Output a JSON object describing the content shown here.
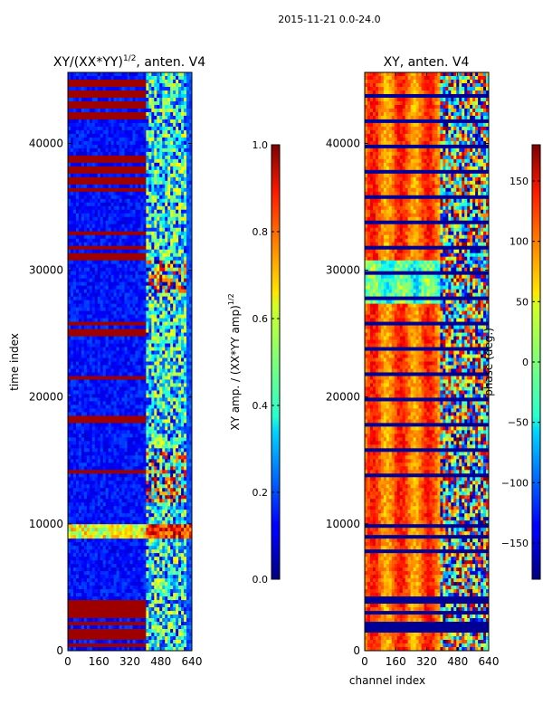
{
  "suptitle": "2015-11-21 0.0-24.0",
  "chart_data": [
    {
      "type": "heatmap",
      "title": "XY/(XX*YY)^{1/2}, anten. V4",
      "title_main": "XY/(XX*YY)",
      "title_exp": "1/2",
      "title_rest": ", anten. V4",
      "xlabel": "",
      "ylabel": "time index",
      "xlim": [
        0,
        640
      ],
      "ylim": [
        0,
        45600
      ],
      "xticks": [
        0,
        160,
        320,
        480,
        640
      ],
      "yticks": [
        0,
        10000,
        20000,
        30000,
        40000
      ],
      "colormap": "jet",
      "colorbar": {
        "label": "XY amp. / (XX*YY amp)^{1/2}",
        "label_main": "XY amp. / (XX*YY amp)",
        "label_exp": "1/2",
        "range": [
          0.0,
          1.0
        ],
        "ticks": [
          "0.0",
          "0.2",
          "0.4",
          "0.6",
          "0.8",
          "1.0"
        ],
        "tick_values": [
          0.0,
          0.2,
          0.4,
          0.6,
          0.8,
          1.0
        ]
      }
    },
    {
      "type": "heatmap",
      "title": "XY, anten. V4",
      "xlabel": "channel index",
      "ylabel": "",
      "xlim": [
        0,
        640
      ],
      "ylim": [
        0,
        45600
      ],
      "xticks": [
        0,
        160,
        320,
        480,
        640
      ],
      "yticks": [
        0,
        10000,
        20000,
        30000,
        40000
      ],
      "colormap": "jet",
      "colorbar": {
        "label": "phase (deg.)",
        "range": [
          -180,
          180
        ],
        "ticks": [
          "150",
          "100",
          "50",
          "0",
          "−50",
          "−100",
          "−150"
        ],
        "tick_values": [
          150,
          100,
          50,
          0,
          -50,
          -100,
          -150
        ]
      }
    }
  ]
}
